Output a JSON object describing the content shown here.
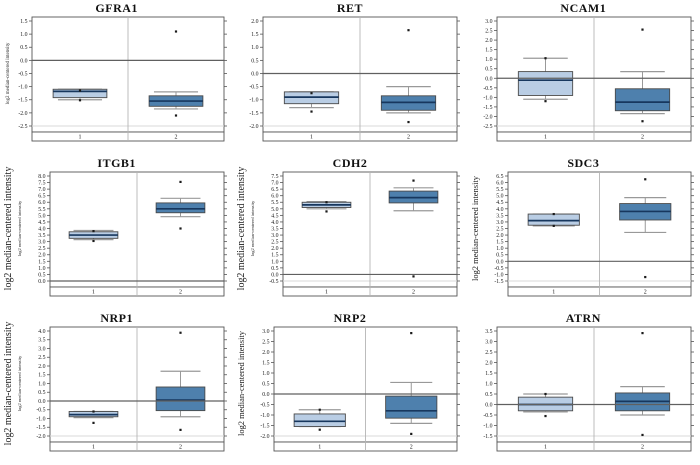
{
  "figure": {
    "name": "gene-expression-boxplot-grid",
    "ylabel": "log2 median-centered intensity",
    "group_labels": [
      "1",
      "2"
    ]
  },
  "colors": {
    "box_group1": "#b9cde4",
    "box_group2": "#4e80ad",
    "median": "#17375e",
    "box_border": "#4a4a4a",
    "whisker": "#999999",
    "axis": "#555555",
    "zero_line": "#606060",
    "divider": "#b5b5b5",
    "grid_faint": "#d9d9d9",
    "outlier": "#1a1a1a",
    "text": "#1a1a1a"
  },
  "chart_data": [
    {
      "type": "box",
      "title": "GFRA1",
      "gene": "GFRA1",
      "xlabel": "",
      "ylabel": "log2 median-centered intensity",
      "ylabel_style": "small",
      "ylim": [
        -2.5,
        1.5
      ],
      "ytick_step": 0.5,
      "grid": false,
      "categories": [
        "1",
        "2"
      ],
      "series": [
        {
          "name": "1",
          "whisker_low": -1.5,
          "q1": -1.42,
          "median": -1.18,
          "q3": -1.1,
          "whisker_high": -1.1,
          "outliers": [
            -1.15,
            -1.52
          ]
        },
        {
          "name": "2",
          "whisker_low": -1.85,
          "q1": -1.75,
          "median": -1.55,
          "q3": -1.35,
          "whisker_high": -1.2,
          "outliers": [
            1.1,
            -2.1
          ]
        }
      ]
    },
    {
      "type": "box",
      "title": "RET",
      "gene": "RET",
      "xlabel": "",
      "ylabel": "",
      "ylabel_style": "none",
      "ylim": [
        -2.0,
        2.0
      ],
      "ytick_step": 0.5,
      "grid": false,
      "categories": [
        "1",
        "2"
      ],
      "series": [
        {
          "name": "1",
          "whisker_low": -1.3,
          "q1": -1.15,
          "median": -0.9,
          "q3": -0.7,
          "whisker_high": -0.7,
          "outliers": [
            -0.75,
            -1.45
          ]
        },
        {
          "name": "2",
          "whisker_low": -1.5,
          "q1": -1.4,
          "median": -1.1,
          "q3": -0.85,
          "whisker_high": -0.5,
          "outliers": [
            1.65,
            -1.85
          ]
        }
      ]
    },
    {
      "type": "box",
      "title": "NCAM1",
      "gene": "NCAM1",
      "xlabel": "",
      "ylabel": "",
      "ylabel_style": "none",
      "ylim": [
        -2.5,
        3.0
      ],
      "ytick_step": 0.5,
      "grid": false,
      "categories": [
        "1",
        "2"
      ],
      "series": [
        {
          "name": "1",
          "whisker_low": -1.1,
          "q1": -0.9,
          "median": -0.1,
          "q3": 0.35,
          "whisker_high": 1.05,
          "outliers": [
            1.05,
            -1.2
          ]
        },
        {
          "name": "2",
          "whisker_low": -1.85,
          "q1": -1.7,
          "median": -1.25,
          "q3": -0.55,
          "whisker_high": 0.35,
          "outliers": [
            2.55,
            -2.25
          ]
        }
      ]
    },
    {
      "type": "box",
      "title": "ITGB1",
      "gene": "ITGB1",
      "xlabel": "",
      "ylabel": "log2 median-centered intensity",
      "ylabel_style": "dual",
      "ylim": [
        0.0,
        8.0
      ],
      "ytick_step": 0.5,
      "grid": false,
      "categories": [
        "1",
        "2"
      ],
      "series": [
        {
          "name": "1",
          "whisker_low": 3.15,
          "q1": 3.25,
          "median": 3.5,
          "q3": 3.75,
          "whisker_high": 3.85,
          "outliers": [
            3.8,
            3.05
          ]
        },
        {
          "name": "2",
          "whisker_low": 4.9,
          "q1": 5.2,
          "median": 5.5,
          "q3": 5.95,
          "whisker_high": 6.3,
          "outliers": [
            7.55,
            4.0
          ]
        }
      ]
    },
    {
      "type": "box",
      "title": "CDH2",
      "gene": "CDH2",
      "xlabel": "",
      "ylabel": "log2 median-centered intensity",
      "ylabel_style": "dual",
      "ylim": [
        -0.5,
        7.5
      ],
      "ytick_step": 0.5,
      "grid": false,
      "categories": [
        "1",
        "2"
      ],
      "series": [
        {
          "name": "1",
          "whisker_low": 5.0,
          "q1": 5.1,
          "median": 5.3,
          "q3": 5.5,
          "whisker_high": 5.55,
          "outliers": [
            5.5,
            4.8
          ]
        },
        {
          "name": "2",
          "whisker_low": 4.85,
          "q1": 5.45,
          "median": 5.85,
          "q3": 6.35,
          "whisker_high": 6.6,
          "outliers": [
            7.15,
            -0.15
          ]
        }
      ]
    },
    {
      "type": "box",
      "title": "SDC3",
      "gene": "SDC3",
      "xlabel": "",
      "ylabel": "log2 median-centered intensity",
      "ylabel_style": "medium",
      "ylim": [
        -1.5,
        6.5
      ],
      "ytick_step": 0.5,
      "grid": false,
      "categories": [
        "1",
        "2"
      ],
      "series": [
        {
          "name": "1",
          "whisker_low": 2.7,
          "q1": 2.75,
          "median": 3.1,
          "q3": 3.6,
          "whisker_high": 3.6,
          "outliers": [
            3.6,
            2.7
          ]
        },
        {
          "name": "2",
          "whisker_low": 2.2,
          "q1": 3.15,
          "median": 3.8,
          "q3": 4.4,
          "whisker_high": 4.85,
          "outliers": [
            6.25,
            -1.2
          ]
        }
      ]
    },
    {
      "type": "box",
      "title": "NRP1",
      "gene": "NRP1",
      "xlabel": "",
      "ylabel": "log2 median-centered intensity",
      "ylabel_style": "dual",
      "ylim": [
        -2.0,
        4.0
      ],
      "ytick_step": 0.5,
      "grid": false,
      "categories": [
        "1",
        "2"
      ],
      "series": [
        {
          "name": "1",
          "whisker_low": -0.95,
          "q1": -0.9,
          "median": -0.78,
          "q3": -0.6,
          "whisker_high": -0.6,
          "outliers": [
            -0.6,
            -1.25
          ]
        },
        {
          "name": "2",
          "whisker_low": -0.9,
          "q1": -0.55,
          "median": 0.05,
          "q3": 0.8,
          "whisker_high": 1.7,
          "outliers": [
            3.9,
            -1.65
          ]
        }
      ]
    },
    {
      "type": "box",
      "title": "NRP2",
      "gene": "NRP2",
      "xlabel": "",
      "ylabel": "log2 median-centered intensity",
      "ylabel_style": "medium",
      "ylim": [
        -2.0,
        3.0
      ],
      "ytick_step": 0.5,
      "grid": false,
      "categories": [
        "1",
        "2"
      ],
      "series": [
        {
          "name": "1",
          "whisker_low": -1.55,
          "q1": -1.55,
          "median": -1.3,
          "q3": -0.95,
          "whisker_high": -0.75,
          "outliers": [
            -0.75,
            -1.7
          ]
        },
        {
          "name": "2",
          "whisker_low": -1.4,
          "q1": -1.15,
          "median": -0.8,
          "q3": -0.1,
          "whisker_high": 0.55,
          "outliers": [
            2.9,
            -1.9
          ]
        }
      ]
    },
    {
      "type": "box",
      "title": "ATRN",
      "gene": "ATRN",
      "xlabel": "",
      "ylabel": "",
      "ylabel_style": "none",
      "ylim": [
        -1.5,
        3.5
      ],
      "ytick_step": 0.5,
      "grid": false,
      "categories": [
        "1",
        "2"
      ],
      "series": [
        {
          "name": "1",
          "whisker_low": -0.35,
          "q1": -0.3,
          "median": 0.0,
          "q3": 0.35,
          "whisker_high": 0.5,
          "outliers": [
            0.5,
            -0.55
          ]
        },
        {
          "name": "2",
          "whisker_low": -0.5,
          "q1": -0.3,
          "median": 0.15,
          "q3": 0.55,
          "whisker_high": 0.85,
          "outliers": [
            3.4,
            -1.45
          ]
        }
      ]
    }
  ]
}
